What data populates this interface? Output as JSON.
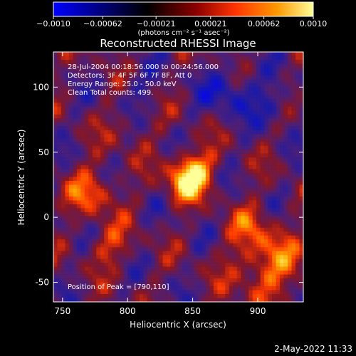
{
  "chart_data": {
    "type": "heatmap",
    "title": "Reconstructed RHESSI Image",
    "xlabel": "Heliocentric X (arcsec)",
    "ylabel": "Heliocentric Y (arcsec)",
    "x_ticks": [
      750,
      800,
      850,
      900
    ],
    "y_ticks": [
      -50,
      0,
      50,
      100
    ],
    "xlim": [
      743,
      935
    ],
    "ylim": [
      -65,
      127
    ],
    "colorbar": {
      "label": "(photons cm⁻² s⁻¹ asec⁻²)",
      "min": -0.001,
      "max": 0.001,
      "ticks": [
        "−0.0010",
        "−0.00062",
        "−0.00021",
        "0.00021",
        "0.00062",
        "0.0010"
      ],
      "tick_values": [
        -0.001,
        -0.00062,
        -0.00021,
        0.00021,
        0.00062,
        0.001
      ],
      "colors": [
        "#0000ff",
        "#000080",
        "#000000",
        "#8b0000",
        "#ff3300",
        "#ff9900",
        "#ffff99"
      ]
    },
    "annotations": {
      "time_range": "28-Jul-2004 00:18:56.000 to 00:24:56.000",
      "detectors": "Detectors: 3F 4F 5F 6F 7F 8F, Att 0",
      "energy_range": "Energy Range: 25.0 - 50.0 keV",
      "method_counts": "Clean      Total counts: 499.",
      "peak_position": "Position of Peak = [790,110]"
    },
    "grid": false,
    "legend": "none"
  },
  "footer": {
    "date_time": "2-May-2022 11:33"
  }
}
